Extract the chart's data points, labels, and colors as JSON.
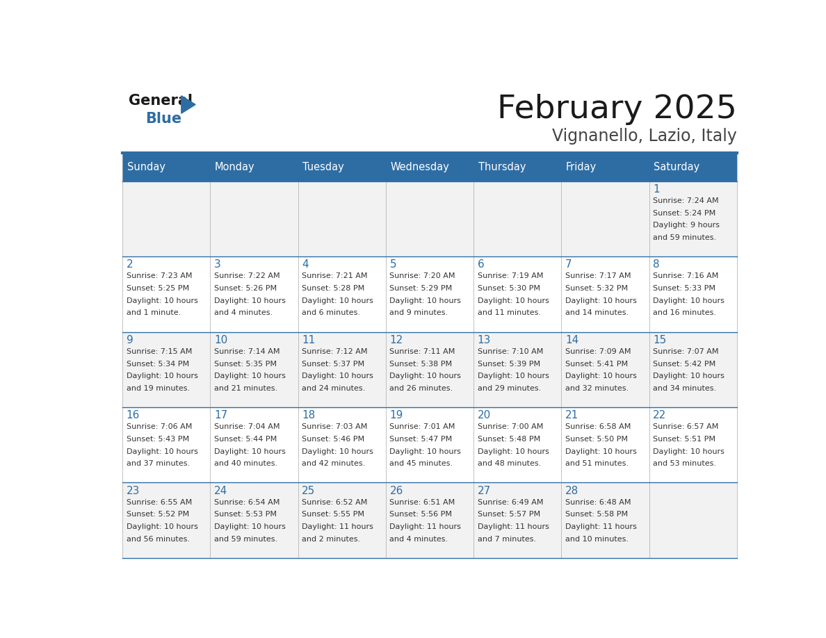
{
  "title": "February 2025",
  "subtitle": "Vignanello, Lazio, Italy",
  "header_bg": "#2E6DA4",
  "header_text_color": "#FFFFFF",
  "cell_bg_light": "#F2F2F2",
  "cell_bg_white": "#FFFFFF",
  "day_number_color": "#2E6DA4",
  "info_text_color": "#333333",
  "border_color": "#2E6DA4",
  "grid_line_color": "#AAAAAA",
  "days_of_week": [
    "Sunday",
    "Monday",
    "Tuesday",
    "Wednesday",
    "Thursday",
    "Friday",
    "Saturday"
  ],
  "weeks": [
    [
      {
        "day": null,
        "info": ""
      },
      {
        "day": null,
        "info": ""
      },
      {
        "day": null,
        "info": ""
      },
      {
        "day": null,
        "info": ""
      },
      {
        "day": null,
        "info": ""
      },
      {
        "day": null,
        "info": ""
      },
      {
        "day": 1,
        "info": "Sunrise: 7:24 AM\nSunset: 5:24 PM\nDaylight: 9 hours\nand 59 minutes."
      }
    ],
    [
      {
        "day": 2,
        "info": "Sunrise: 7:23 AM\nSunset: 5:25 PM\nDaylight: 10 hours\nand 1 minute."
      },
      {
        "day": 3,
        "info": "Sunrise: 7:22 AM\nSunset: 5:26 PM\nDaylight: 10 hours\nand 4 minutes."
      },
      {
        "day": 4,
        "info": "Sunrise: 7:21 AM\nSunset: 5:28 PM\nDaylight: 10 hours\nand 6 minutes."
      },
      {
        "day": 5,
        "info": "Sunrise: 7:20 AM\nSunset: 5:29 PM\nDaylight: 10 hours\nand 9 minutes."
      },
      {
        "day": 6,
        "info": "Sunrise: 7:19 AM\nSunset: 5:30 PM\nDaylight: 10 hours\nand 11 minutes."
      },
      {
        "day": 7,
        "info": "Sunrise: 7:17 AM\nSunset: 5:32 PM\nDaylight: 10 hours\nand 14 minutes."
      },
      {
        "day": 8,
        "info": "Sunrise: 7:16 AM\nSunset: 5:33 PM\nDaylight: 10 hours\nand 16 minutes."
      }
    ],
    [
      {
        "day": 9,
        "info": "Sunrise: 7:15 AM\nSunset: 5:34 PM\nDaylight: 10 hours\nand 19 minutes."
      },
      {
        "day": 10,
        "info": "Sunrise: 7:14 AM\nSunset: 5:35 PM\nDaylight: 10 hours\nand 21 minutes."
      },
      {
        "day": 11,
        "info": "Sunrise: 7:12 AM\nSunset: 5:37 PM\nDaylight: 10 hours\nand 24 minutes."
      },
      {
        "day": 12,
        "info": "Sunrise: 7:11 AM\nSunset: 5:38 PM\nDaylight: 10 hours\nand 26 minutes."
      },
      {
        "day": 13,
        "info": "Sunrise: 7:10 AM\nSunset: 5:39 PM\nDaylight: 10 hours\nand 29 minutes."
      },
      {
        "day": 14,
        "info": "Sunrise: 7:09 AM\nSunset: 5:41 PM\nDaylight: 10 hours\nand 32 minutes."
      },
      {
        "day": 15,
        "info": "Sunrise: 7:07 AM\nSunset: 5:42 PM\nDaylight: 10 hours\nand 34 minutes."
      }
    ],
    [
      {
        "day": 16,
        "info": "Sunrise: 7:06 AM\nSunset: 5:43 PM\nDaylight: 10 hours\nand 37 minutes."
      },
      {
        "day": 17,
        "info": "Sunrise: 7:04 AM\nSunset: 5:44 PM\nDaylight: 10 hours\nand 40 minutes."
      },
      {
        "day": 18,
        "info": "Sunrise: 7:03 AM\nSunset: 5:46 PM\nDaylight: 10 hours\nand 42 minutes."
      },
      {
        "day": 19,
        "info": "Sunrise: 7:01 AM\nSunset: 5:47 PM\nDaylight: 10 hours\nand 45 minutes."
      },
      {
        "day": 20,
        "info": "Sunrise: 7:00 AM\nSunset: 5:48 PM\nDaylight: 10 hours\nand 48 minutes."
      },
      {
        "day": 21,
        "info": "Sunrise: 6:58 AM\nSunset: 5:50 PM\nDaylight: 10 hours\nand 51 minutes."
      },
      {
        "day": 22,
        "info": "Sunrise: 6:57 AM\nSunset: 5:51 PM\nDaylight: 10 hours\nand 53 minutes."
      }
    ],
    [
      {
        "day": 23,
        "info": "Sunrise: 6:55 AM\nSunset: 5:52 PM\nDaylight: 10 hours\nand 56 minutes."
      },
      {
        "day": 24,
        "info": "Sunrise: 6:54 AM\nSunset: 5:53 PM\nDaylight: 10 hours\nand 59 minutes."
      },
      {
        "day": 25,
        "info": "Sunrise: 6:52 AM\nSunset: 5:55 PM\nDaylight: 11 hours\nand 2 minutes."
      },
      {
        "day": 26,
        "info": "Sunrise: 6:51 AM\nSunset: 5:56 PM\nDaylight: 11 hours\nand 4 minutes."
      },
      {
        "day": 27,
        "info": "Sunrise: 6:49 AM\nSunset: 5:57 PM\nDaylight: 11 hours\nand 7 minutes."
      },
      {
        "day": 28,
        "info": "Sunrise: 6:48 AM\nSunset: 5:58 PM\nDaylight: 11 hours\nand 10 minutes."
      },
      {
        "day": null,
        "info": ""
      }
    ]
  ]
}
